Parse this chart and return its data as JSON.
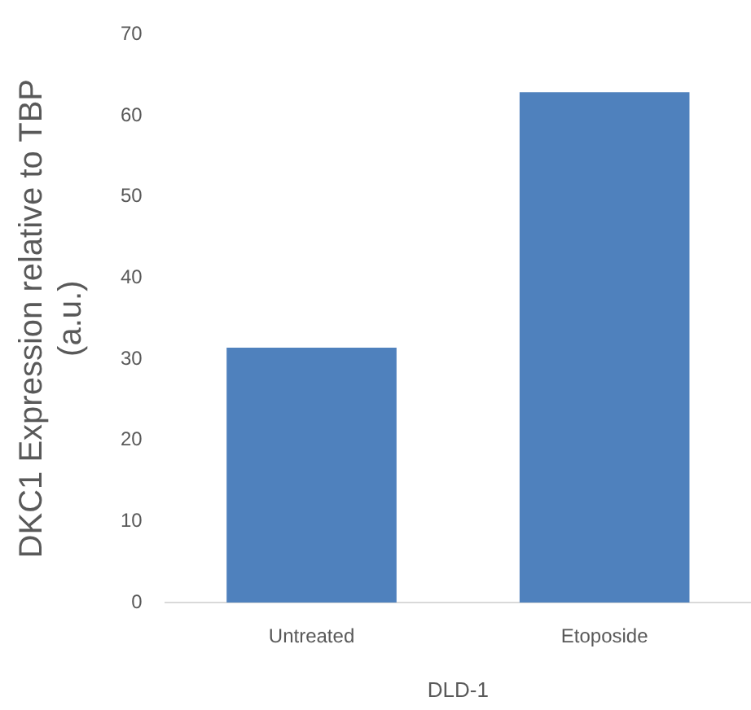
{
  "chart_data": {
    "type": "bar",
    "categories": [
      "Untreated",
      "Etoposide"
    ],
    "values": [
      31.4,
      62.9
    ],
    "color": "#4f81bd",
    "xlabel": "DLD-1",
    "ylabel": "DKC1 Expression relative to TBP\n(a.u.)",
    "ylim": [
      0,
      70
    ],
    "yticks": [
      0,
      10,
      20,
      30,
      40,
      50,
      60,
      70
    ],
    "grid": false,
    "legend": false
  }
}
